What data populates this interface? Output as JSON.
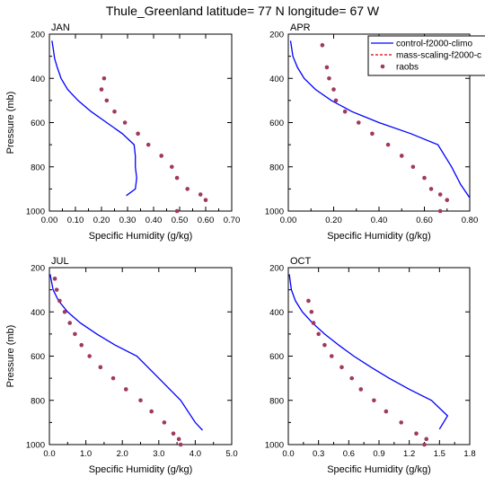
{
  "title": "Thule_Greenland  latitude= 77 N longitude= 67 W",
  "legend": {
    "placement": "top-right of APR panel",
    "entries": [
      {
        "name": "control-f2000-climo",
        "style": "line",
        "color": "#0000ff"
      },
      {
        "name": "mass-scaling-f2000-c",
        "style": "dashed",
        "color": "#dd0000"
      },
      {
        "name": "raobs",
        "style": "dot",
        "color": "#a03a5a"
      }
    ]
  },
  "chart_data": [
    {
      "type": "line",
      "panel": "JAN",
      "xlabel": "Specific Humidity (g/kg)",
      "ylabel": "Pressure (mb)",
      "xlim": [
        0,
        0.7
      ],
      "ylim": [
        200,
        1000
      ],
      "y_inverted": true,
      "xticks": [
        "0.00",
        "0.10",
        "0.20",
        "0.30",
        "0.40",
        "0.50",
        "0.60",
        "0.70"
      ],
      "yticks": [
        "200",
        "400",
        "600",
        "800",
        "1000"
      ],
      "series": [
        {
          "name": "control-f2000-climo",
          "x": [
            0.01,
            0.015,
            0.02,
            0.03,
            0.045,
            0.07,
            0.11,
            0.16,
            0.22,
            0.28,
            0.325,
            0.33,
            0.33,
            0.335,
            0.33,
            0.295
          ],
          "y": [
            230,
            270,
            310,
            350,
            400,
            450,
            500,
            550,
            600,
            650,
            700,
            750,
            800,
            850,
            900,
            930
          ]
        },
        {
          "name": "raobs",
          "x": [
            0.21,
            0.2,
            0.22,
            0.25,
            0.29,
            0.34,
            0.38,
            0.43,
            0.47,
            0.49,
            0.53,
            0.58,
            0.6,
            0.49
          ],
          "y": [
            400,
            450,
            500,
            550,
            600,
            650,
            700,
            750,
            800,
            850,
            900,
            925,
            950,
            1000
          ]
        }
      ]
    },
    {
      "type": "line",
      "panel": "APR",
      "xlabel": "Specific Humidity (g/kg)",
      "ylabel": "Pressure (mb)",
      "xlim": [
        0,
        0.8
      ],
      "ylim": [
        200,
        1000
      ],
      "y_inverted": true,
      "xticks": [
        "0.00",
        "0.20",
        "0.40",
        "0.60",
        "0.80"
      ],
      "yticks": [
        "200",
        "400",
        "600",
        "800",
        "1000"
      ],
      "series": [
        {
          "name": "control-f2000-climo",
          "x": [
            0.01,
            0.02,
            0.04,
            0.07,
            0.12,
            0.19,
            0.28,
            0.4,
            0.54,
            0.66,
            0.72,
            0.76,
            0.8
          ],
          "y": [
            230,
            300,
            350,
            400,
            450,
            500,
            550,
            600,
            650,
            700,
            800,
            880,
            940
          ]
        },
        {
          "name": "raobs",
          "x": [
            0.15,
            0.17,
            0.18,
            0.2,
            0.21,
            0.25,
            0.31,
            0.37,
            0.44,
            0.5,
            0.55,
            0.6,
            0.63,
            0.67,
            0.7,
            0.67
          ],
          "y": [
            250,
            350,
            400,
            450,
            500,
            550,
            600,
            650,
            700,
            750,
            800,
            850,
            900,
            925,
            950,
            1000
          ]
        }
      ]
    },
    {
      "type": "line",
      "panel": "JUL",
      "xlabel": "Specific Humidity (g/kg)",
      "ylabel": "Pressure (mb)",
      "xlim": [
        0,
        5
      ],
      "ylim": [
        200,
        1000
      ],
      "y_inverted": true,
      "xticks": [
        "0.0",
        "1.0",
        "2.0",
        "3.0",
        "4.0",
        "5.0"
      ],
      "yticks": [
        "200",
        "400",
        "600",
        "800",
        "1000"
      ],
      "series": [
        {
          "name": "control-f2000-climo",
          "x": [
            0.02,
            0.1,
            0.25,
            0.5,
            0.85,
            1.3,
            1.8,
            2.4,
            3.0,
            3.6,
            4.0,
            4.2
          ],
          "y": [
            230,
            300,
            350,
            400,
            450,
            500,
            550,
            600,
            700,
            800,
            900,
            935
          ]
        },
        {
          "name": "raobs",
          "x": [
            0.15,
            0.2,
            0.28,
            0.42,
            0.56,
            0.7,
            0.88,
            1.1,
            1.4,
            1.75,
            2.1,
            2.5,
            2.8,
            3.15,
            3.4,
            3.55,
            3.6
          ],
          "y": [
            250,
            300,
            350,
            400,
            450,
            500,
            550,
            600,
            650,
            700,
            750,
            800,
            850,
            900,
            950,
            975,
            1000
          ]
        }
      ]
    },
    {
      "type": "line",
      "panel": "OCT",
      "xlabel": "Specific Humidity (g/kg)",
      "ylabel": "Pressure (mb)",
      "xlim": [
        0,
        1.8
      ],
      "ylim": [
        200,
        1000
      ],
      "y_inverted": true,
      "xticks": [
        "0.0",
        "0.3",
        "0.6",
        "0.9",
        "1.2",
        "1.5",
        "1.8"
      ],
      "yticks": [
        "200",
        "400",
        "600",
        "800",
        "1000"
      ],
      "series": [
        {
          "name": "control-f2000-climo",
          "x": [
            0.01,
            0.03,
            0.07,
            0.14,
            0.24,
            0.36,
            0.5,
            0.65,
            0.82,
            1.0,
            1.2,
            1.42,
            1.58,
            1.5
          ],
          "y": [
            230,
            300,
            350,
            400,
            450,
            500,
            550,
            600,
            650,
            700,
            750,
            800,
            870,
            930
          ]
        },
        {
          "name": "raobs",
          "x": [
            0.2,
            0.23,
            0.25,
            0.3,
            0.36,
            0.43,
            0.53,
            0.63,
            0.72,
            0.85,
            0.97,
            1.12,
            1.27,
            1.37,
            1.35
          ],
          "y": [
            350,
            400,
            450,
            500,
            550,
            600,
            650,
            700,
            750,
            800,
            850,
            900,
            950,
            975,
            1000
          ]
        }
      ]
    }
  ]
}
